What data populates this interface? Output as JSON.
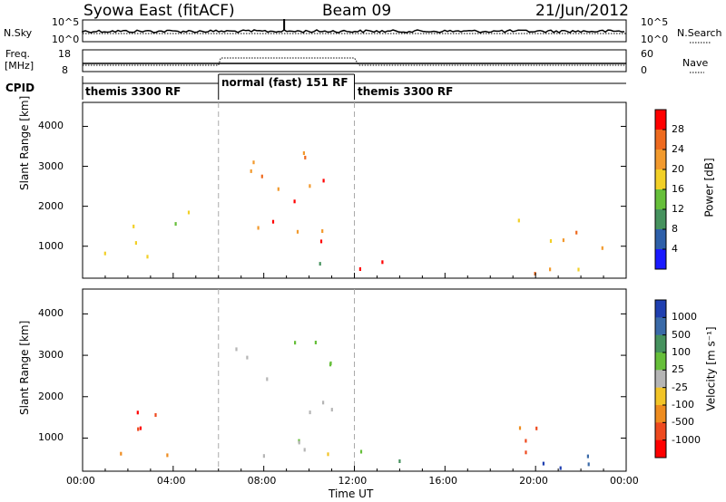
{
  "header": {
    "title": "Syowa East (fitACF)",
    "beam": "Beam 09",
    "date": "21/Jun/2012"
  },
  "strip_labels": {
    "nsky": "N.Sky",
    "freq_line1": "Freq.",
    "freq_line2": "[MHz]",
    "cpid": "CPID",
    "nsearch": "N.Search",
    "nave": "Nave",
    "noise_ticks_left": [
      "10^5",
      "10^0"
    ],
    "noise_ticks_right": [
      "10^5",
      "10^0"
    ],
    "freq_ticks_left": [
      "18",
      "8"
    ],
    "freq_ticks_right": [
      "60",
      "0"
    ]
  },
  "cpid_segments": [
    {
      "label": "themis 3300 RF",
      "start_h": 0,
      "end_h": 6
    },
    {
      "label": "normal (fast) 151 RF",
      "start_h": 6,
      "end_h": 12
    },
    {
      "label": "themis 3300 RF",
      "start_h": 12,
      "end_h": 24
    }
  ],
  "chart_data": [
    {
      "type": "heatmap",
      "name": "power",
      "xlabel": "",
      "ylabel": "Slant Range [km]",
      "xlim_hours": [
        0,
        24
      ],
      "ylim_km": [
        200,
        4600
      ],
      "yticks": [
        1000,
        2000,
        3000,
        4000
      ],
      "colorbar": {
        "label": "Power [dB]",
        "ticks": [
          "28",
          "24",
          "20",
          "16",
          "12",
          "8",
          "4"
        ],
        "colors": [
          "#ff0000",
          "#ee6a1f",
          "#f29a2e",
          "#f2d027",
          "#66bf3a",
          "#46925e",
          "#2e5fa9",
          "#1a1aff"
        ]
      },
      "echo_regions": [
        {
          "t0": 0.8,
          "t1": 4.3,
          "r0": 300,
          "r1": 1700,
          "value_mix": [
            2,
            3,
            4,
            5
          ]
        },
        {
          "t0": 2.3,
          "t1": 4.8,
          "r0": 1500,
          "r1": 1900,
          "value_mix": [
            3,
            4,
            5
          ]
        },
        {
          "t0": 6.5,
          "t1": 11.0,
          "r0": 600,
          "r1": 3400,
          "value_mix": [
            0,
            1,
            2
          ]
        },
        {
          "t0": 7.0,
          "t1": 11.5,
          "r0": 550,
          "r1": 800,
          "value_mix": [
            5,
            6,
            7
          ]
        },
        {
          "t0": 12.0,
          "t1": 14.5,
          "r0": 300,
          "r1": 1000,
          "value_mix": [
            0,
            1
          ]
        },
        {
          "t0": 19.0,
          "t1": 24.0,
          "r0": 300,
          "r1": 1700,
          "value_mix": [
            0,
            1,
            2,
            3
          ]
        }
      ]
    },
    {
      "type": "heatmap",
      "name": "velocity",
      "xlabel": "Time UT",
      "ylabel": "Slant Range [km]",
      "xlim_hours": [
        0,
        24
      ],
      "ylim_km": [
        200,
        4600
      ],
      "yticks": [
        1000,
        2000,
        3000,
        4000
      ],
      "xticks": [
        "00:00",
        "04:00",
        "08:00",
        "12:00",
        "16:00",
        "20:00",
        "00:00"
      ],
      "colorbar": {
        "label": "Velocity [m s⁻¹]",
        "ticks": [
          "1000",
          "500",
          "100",
          "25",
          "-25",
          "-100",
          "-500",
          "-1000"
        ],
        "colors": [
          "#1f3fb0",
          "#3a6aa8",
          "#46925e",
          "#66bf3a",
          "#b5b5b5",
          "#f2c427",
          "#ee8c1f",
          "#ee4a1f",
          "#ff0000"
        ]
      },
      "echo_regions": [
        {
          "t0": 0.5,
          "t1": 4.5,
          "r0": 300,
          "r1": 1700,
          "value_mix": [
            6,
            7,
            8
          ]
        },
        {
          "t0": 6.5,
          "t1": 11.0,
          "r0": 600,
          "r1": 3400,
          "value_mix": [
            4,
            3
          ]
        },
        {
          "t0": 7.0,
          "t1": 11.5,
          "r0": 550,
          "r1": 800,
          "value_mix": [
            2,
            3,
            5
          ]
        },
        {
          "t0": 12.0,
          "t1": 15.0,
          "r0": 300,
          "r1": 1000,
          "value_mix": [
            2,
            3
          ]
        },
        {
          "t0": 19.0,
          "t1": 24.0,
          "r0": 300,
          "r1": 1700,
          "value_mix": [
            0,
            1,
            6,
            7
          ]
        }
      ]
    }
  ]
}
